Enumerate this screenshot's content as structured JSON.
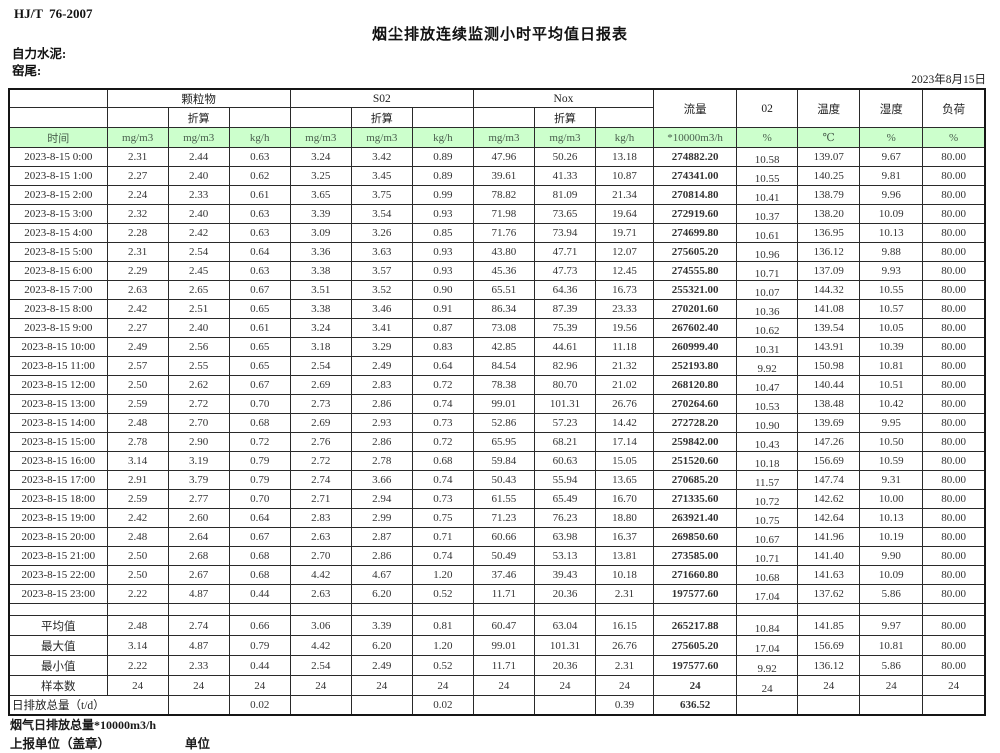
{
  "page": {
    "standard": "HJ/T  76-2007",
    "title": "烟尘排放连续监测小时平均值日报表",
    "company": "自力水泥:",
    "location": "窑尾:",
    "date": "2023年8月15日",
    "footer_note": "烟气日排放总量*10000m3/h",
    "footer_report_unit": "上报单位（盖章）",
    "footer_unit": "单位"
  },
  "colors": {
    "header_green": "#ccffcc",
    "border": "#2a2a2a"
  },
  "table": {
    "time_label": "时间",
    "converted_label": "折算",
    "groups": [
      {
        "label": "颗粒物"
      },
      {
        "label": "S02"
      },
      {
        "label": "Nox"
      }
    ],
    "single_headers": [
      "流量",
      "02",
      "温度",
      "湿度",
      "负荷"
    ],
    "unit_row": [
      "mg/m3",
      "mg/m3",
      "kg/h",
      "mg/m3",
      "mg/m3",
      "kg/h",
      "mg/m3",
      "mg/m3",
      "kg/h",
      "*10000m3/h",
      "%",
      "℃",
      "%",
      "%"
    ],
    "rows": [
      {
        "time": "2023-8-15 0:00",
        "values": [
          "2.31",
          "2.44",
          "0.63",
          "3.24",
          "3.42",
          "0.89",
          "47.96",
          "50.26",
          "13.18",
          "274882.20",
          "10.58",
          "139.07",
          "9.67",
          "80.00"
        ]
      },
      {
        "time": "2023-8-15 1:00",
        "values": [
          "2.27",
          "2.40",
          "0.62",
          "3.25",
          "3.45",
          "0.89",
          "39.61",
          "41.33",
          "10.87",
          "274341.00",
          "10.55",
          "140.25",
          "9.81",
          "80.00"
        ]
      },
      {
        "time": "2023-8-15 2:00",
        "values": [
          "2.24",
          "2.33",
          "0.61",
          "3.65",
          "3.75",
          "0.99",
          "78.82",
          "81.09",
          "21.34",
          "270814.80",
          "10.41",
          "138.79",
          "9.96",
          "80.00"
        ]
      },
      {
        "time": "2023-8-15 3:00",
        "values": [
          "2.32",
          "2.40",
          "0.63",
          "3.39",
          "3.54",
          "0.93",
          "71.98",
          "73.65",
          "19.64",
          "272919.60",
          "10.37",
          "138.20",
          "10.09",
          "80.00"
        ]
      },
      {
        "time": "2023-8-15 4:00",
        "values": [
          "2.28",
          "2.42",
          "0.63",
          "3.09",
          "3.26",
          "0.85",
          "71.76",
          "73.94",
          "19.71",
          "274699.80",
          "10.61",
          "136.95",
          "10.13",
          "80.00"
        ]
      },
      {
        "time": "2023-8-15 5:00",
        "values": [
          "2.31",
          "2.54",
          "0.64",
          "3.36",
          "3.63",
          "0.93",
          "43.80",
          "47.71",
          "12.07",
          "275605.20",
          "10.96",
          "136.12",
          "9.88",
          "80.00"
        ]
      },
      {
        "time": "2023-8-15 6:00",
        "values": [
          "2.29",
          "2.45",
          "0.63",
          "3.38",
          "3.57",
          "0.93",
          "45.36",
          "47.73",
          "12.45",
          "274555.80",
          "10.71",
          "137.09",
          "9.93",
          "80.00"
        ]
      },
      {
        "time": "2023-8-15 7:00",
        "values": [
          "2.63",
          "2.65",
          "0.67",
          "3.51",
          "3.52",
          "0.90",
          "65.51",
          "64.36",
          "16.73",
          "255321.00",
          "10.07",
          "144.32",
          "10.55",
          "80.00"
        ]
      },
      {
        "time": "2023-8-15 8:00",
        "values": [
          "2.42",
          "2.51",
          "0.65",
          "3.38",
          "3.46",
          "0.91",
          "86.34",
          "87.39",
          "23.33",
          "270201.60",
          "10.36",
          "141.08",
          "10.57",
          "80.00"
        ]
      },
      {
        "time": "2023-8-15 9:00",
        "values": [
          "2.27",
          "2.40",
          "0.61",
          "3.24",
          "3.41",
          "0.87",
          "73.08",
          "75.39",
          "19.56",
          "267602.40",
          "10.62",
          "139.54",
          "10.05",
          "80.00"
        ]
      },
      {
        "time": "2023-8-15 10:00",
        "values": [
          "2.49",
          "2.56",
          "0.65",
          "3.18",
          "3.29",
          "0.83",
          "42.85",
          "44.61",
          "11.18",
          "260999.40",
          "10.31",
          "143.91",
          "10.39",
          "80.00"
        ]
      },
      {
        "time": "2023-8-15 11:00",
        "values": [
          "2.57",
          "2.55",
          "0.65",
          "2.54",
          "2.49",
          "0.64",
          "84.54",
          "82.96",
          "21.32",
          "252193.80",
          "9.92",
          "150.98",
          "10.81",
          "80.00"
        ]
      },
      {
        "time": "2023-8-15 12:00",
        "values": [
          "2.50",
          "2.62",
          "0.67",
          "2.69",
          "2.83",
          "0.72",
          "78.38",
          "80.70",
          "21.02",
          "268120.80",
          "10.47",
          "140.44",
          "10.51",
          "80.00"
        ]
      },
      {
        "time": "2023-8-15 13:00",
        "values": [
          "2.59",
          "2.72",
          "0.70",
          "2.73",
          "2.86",
          "0.74",
          "99.01",
          "101.31",
          "26.76",
          "270264.60",
          "10.53",
          "138.48",
          "10.42",
          "80.00"
        ]
      },
      {
        "time": "2023-8-15 14:00",
        "values": [
          "2.48",
          "2.70",
          "0.68",
          "2.69",
          "2.93",
          "0.73",
          "52.86",
          "57.23",
          "14.42",
          "272728.20",
          "10.90",
          "139.69",
          "9.95",
          "80.00"
        ]
      },
      {
        "time": "2023-8-15 15:00",
        "values": [
          "2.78",
          "2.90",
          "0.72",
          "2.76",
          "2.86",
          "0.72",
          "65.95",
          "68.21",
          "17.14",
          "259842.00",
          "10.43",
          "147.26",
          "10.50",
          "80.00"
        ]
      },
      {
        "time": "2023-8-15 16:00",
        "values": [
          "3.14",
          "3.19",
          "0.79",
          "2.72",
          "2.78",
          "0.68",
          "59.84",
          "60.63",
          "15.05",
          "251520.60",
          "10.18",
          "156.69",
          "10.59",
          "80.00"
        ]
      },
      {
        "time": "2023-8-15 17:00",
        "values": [
          "2.91",
          "3.79",
          "0.79",
          "2.74",
          "3.66",
          "0.74",
          "50.43",
          "55.94",
          "13.65",
          "270685.20",
          "11.57",
          "147.74",
          "9.31",
          "80.00"
        ]
      },
      {
        "time": "2023-8-15 18:00",
        "values": [
          "2.59",
          "2.77",
          "0.70",
          "2.71",
          "2.94",
          "0.73",
          "61.55",
          "65.49",
          "16.70",
          "271335.60",
          "10.72",
          "142.62",
          "10.00",
          "80.00"
        ]
      },
      {
        "time": "2023-8-15 19:00",
        "values": [
          "2.42",
          "2.60",
          "0.64",
          "2.83",
          "2.99",
          "0.75",
          "71.23",
          "76.23",
          "18.80",
          "263921.40",
          "10.75",
          "142.64",
          "10.13",
          "80.00"
        ]
      },
      {
        "time": "2023-8-15 20:00",
        "values": [
          "2.48",
          "2.64",
          "0.67",
          "2.63",
          "2.87",
          "0.71",
          "60.66",
          "63.98",
          "16.37",
          "269850.60",
          "10.67",
          "141.96",
          "10.19",
          "80.00"
        ]
      },
      {
        "time": "2023-8-15 21:00",
        "values": [
          "2.50",
          "2.68",
          "0.68",
          "2.70",
          "2.86",
          "0.74",
          "50.49",
          "53.13",
          "13.81",
          "273585.00",
          "10.71",
          "141.40",
          "9.90",
          "80.00"
        ]
      },
      {
        "time": "2023-8-15 22:00",
        "values": [
          "2.50",
          "2.67",
          "0.68",
          "4.42",
          "4.67",
          "1.20",
          "37.46",
          "39.43",
          "10.18",
          "271660.80",
          "10.68",
          "141.63",
          "10.09",
          "80.00"
        ]
      },
      {
        "time": "2023-8-15 23:00",
        "values": [
          "2.22",
          "4.87",
          "0.44",
          "2.63",
          "6.20",
          "0.52",
          "11.71",
          "20.36",
          "2.31",
          "197577.60",
          "17.04",
          "137.62",
          "5.86",
          "80.00"
        ]
      }
    ],
    "summary": [
      {
        "label": "平均值",
        "values": [
          "2.48",
          "2.74",
          "0.66",
          "3.06",
          "3.39",
          "0.81",
          "60.47",
          "63.04",
          "16.15",
          "265217.88",
          "10.84",
          "141.85",
          "9.97",
          "80.00"
        ]
      },
      {
        "label": "最大值",
        "values": [
          "3.14",
          "4.87",
          "0.79",
          "4.42",
          "6.20",
          "1.20",
          "99.01",
          "101.31",
          "26.76",
          "275605.20",
          "17.04",
          "156.69",
          "10.81",
          "80.00"
        ]
      },
      {
        "label": "最小值",
        "values": [
          "2.22",
          "2.33",
          "0.44",
          "2.54",
          "2.49",
          "0.52",
          "11.71",
          "20.36",
          "2.31",
          "197577.60",
          "9.92",
          "136.12",
          "5.86",
          "80.00"
        ]
      },
      {
        "label": "样本数",
        "values": [
          "24",
          "24",
          "24",
          "24",
          "24",
          "24",
          "24",
          "24",
          "24",
          "24",
          "24",
          "24",
          "24",
          "24"
        ]
      }
    ],
    "daily_total": {
      "label": "日排放总量（t/d）",
      "values": [
        "",
        "0.02",
        "",
        "",
        "0.02",
        "",
        "",
        "0.39",
        "636.52",
        "",
        "",
        "",
        ""
      ]
    }
  }
}
